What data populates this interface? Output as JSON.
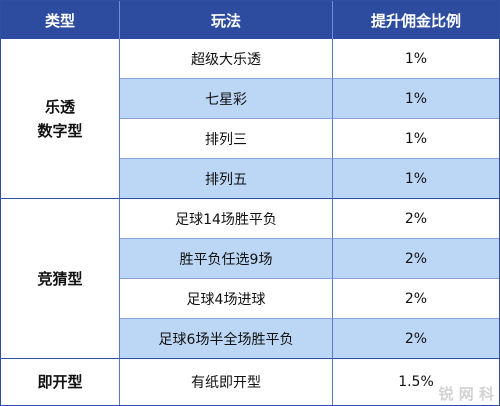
{
  "headers": {
    "type": "类型",
    "play": "玩法",
    "rate": "提升佣金比例"
  },
  "groups": [
    {
      "type_lines": [
        "乐透",
        "数字型"
      ],
      "rows": [
        {
          "play": "超级大乐透",
          "rate": "1%"
        },
        {
          "play": "七星彩",
          "rate": "1%"
        },
        {
          "play": "排列三",
          "rate": "1%"
        },
        {
          "play": "排列五",
          "rate": "1%"
        }
      ]
    },
    {
      "type_lines": [
        "竞猜型"
      ],
      "rows": [
        {
          "play": "足球14场胜平负",
          "rate": "2%"
        },
        {
          "play": "胜平负任选9场",
          "rate": "2%"
        },
        {
          "play": "足球4场进球",
          "rate": "2%"
        },
        {
          "play": "足球6场半全场胜平负",
          "rate": "2%"
        }
      ]
    },
    {
      "type_lines": [
        "即开型"
      ],
      "rows": [
        {
          "play": "有纸即开型",
          "rate": "1.5%"
        }
      ]
    }
  ],
  "watermark": "锐 网 科",
  "colors": {
    "header_bg": "#2d4c9f",
    "alt_row_bg": "#bcd6f5",
    "border": "#2f4fa3"
  }
}
